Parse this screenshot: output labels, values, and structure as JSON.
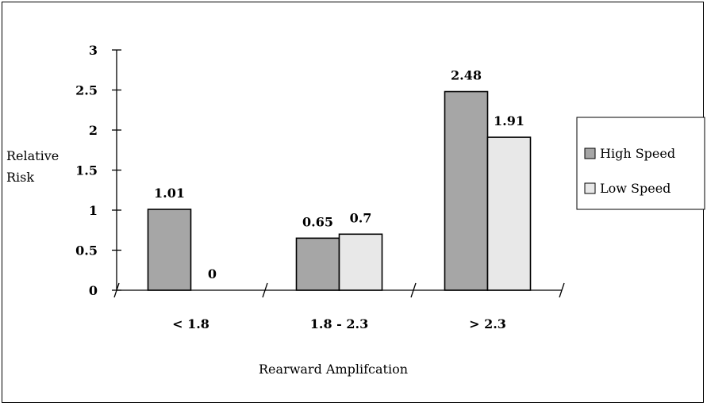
{
  "chart_data": {
    "type": "bar",
    "categories": [
      "< 1.8",
      "1.8 - 2.3",
      "> 2.3"
    ],
    "series": [
      {
        "name": "High Speed",
        "values": [
          1.01,
          0.65,
          2.48
        ],
        "color": "#a6a6a6"
      },
      {
        "name": "Low Speed",
        "values": [
          0,
          0.7,
          1.91
        ],
        "color": "#e8e8e8"
      }
    ],
    "data_labels": [
      [
        "1.01",
        "0.65",
        "2.48"
      ],
      [
        "0",
        "0.7",
        "1.91"
      ]
    ],
    "ylabel_lines": [
      "Relative",
      "Risk"
    ],
    "xlabel": "Rearward Amplifcation",
    "ylim": [
      0,
      3
    ],
    "yticks": [
      {
        "value": 0,
        "label": "0"
      },
      {
        "value": 0.5,
        "label": "0.5"
      },
      {
        "value": 1,
        "label": "1"
      },
      {
        "value": 1.5,
        "label": "1.5"
      },
      {
        "value": 2,
        "label": "2"
      },
      {
        "value": 2.5,
        "label": "2.5"
      },
      {
        "value": 3,
        "label": "3"
      }
    ],
    "grid": false,
    "legend_position": "right"
  }
}
